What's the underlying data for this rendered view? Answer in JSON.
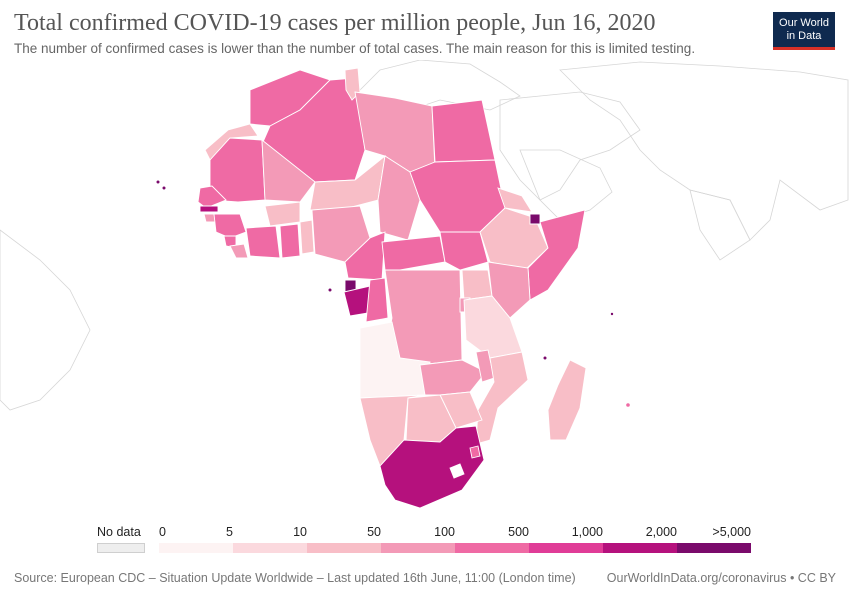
{
  "title": "Total confirmed COVID-19 cases per million people, Jun 16, 2020",
  "subtitle": "The number of confirmed cases is lower than the number of total cases. The main reason for this is limited testing.",
  "logo": {
    "line1": "Our World",
    "line2": "in Data"
  },
  "legend": {
    "no_data_label": "No data",
    "no_data_color": "#eeeeee",
    "tick_labels": [
      "0",
      "5",
      "10",
      "50",
      "100",
      "500",
      "1,000",
      "2,000",
      ">5,000"
    ],
    "colors": [
      "#fdf3f3",
      "#fbd9de",
      "#f8bec7",
      "#f39ab7",
      "#ef6aa4",
      "#e03c97",
      "#b5117d",
      "#7a0a6b"
    ]
  },
  "source": "Source: European CDC – Situation Update Worldwide – Last updated 16th June, 11:00 (London time)",
  "source_right": "OurWorldInData.org/coronavirus • CC BY"
}
